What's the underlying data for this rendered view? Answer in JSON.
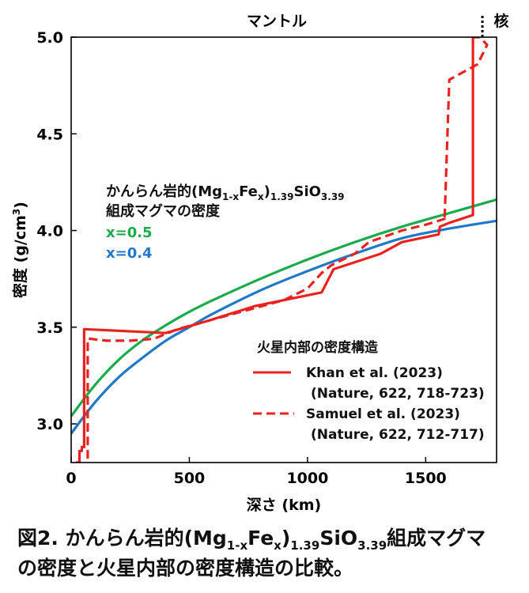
{
  "chart_data": {
    "type": "line",
    "xlabel": "深さ (km)",
    "ylabel_main": "密度 (g/cm",
    "ylabel_sup": "3",
    "ylabel_close": ")",
    "xlim": [
      0,
      1800
    ],
    "ylim": [
      2.8,
      5.0
    ],
    "xticks": [
      0,
      500,
      1000,
      1500
    ],
    "xtick_labels": [
      "0",
      "500",
      "1000",
      "1500"
    ],
    "yticks": [
      3.0,
      3.5,
      4.0,
      4.5,
      5.0
    ],
    "ytick_labels": [
      "3.0",
      "3.5",
      "4.0",
      "4.5",
      "5.0"
    ],
    "regions": {
      "mantle": "マントル",
      "core": "核",
      "boundary_depth": 1740
    },
    "annotation": {
      "line1": "かんらん岩的(Mg",
      "line1_sub1": "1-x",
      "line1_mid": "Fe",
      "line1_sub2": "x",
      "line1_mid2": ")",
      "line1_sub3": "1.39",
      "line1_mid3": "SiO",
      "line1_sub4": "3.39",
      "line2": "組成マグマの密度",
      "x05": "x=0.5",
      "x04": "x=0.4"
    },
    "legend": {
      "title": "火星内部の密度構造",
      "items": [
        {
          "label": "Khan et al. (2023)",
          "ref": "(Nature, 622, 718-723)",
          "style": "solid"
        },
        {
          "label": "Samuel et al. (2023)",
          "ref": "(Nature, 622, 712-717)",
          "style": "dashed"
        }
      ]
    },
    "series": [
      {
        "name": "x=0.5",
        "color": "#1aab4b",
        "x": [
          0,
          100,
          200,
          300,
          400,
          500,
          600,
          800,
          1000,
          1200,
          1400,
          1600,
          1800
        ],
        "y": [
          3.04,
          3.2,
          3.33,
          3.43,
          3.51,
          3.58,
          3.64,
          3.75,
          3.85,
          3.94,
          4.02,
          4.09,
          4.16
        ]
      },
      {
        "name": "x=0.4",
        "color": "#1f78c8",
        "x": [
          0,
          100,
          200,
          300,
          400,
          500,
          600,
          800,
          1000,
          1200,
          1400,
          1600,
          1800
        ],
        "y": [
          2.95,
          3.11,
          3.24,
          3.34,
          3.43,
          3.5,
          3.57,
          3.69,
          3.79,
          3.88,
          3.96,
          4.01,
          4.05
        ]
      },
      {
        "name": "Khan et al. (2023)",
        "color": "#e8231f",
        "dash": false,
        "x": [
          20,
          35,
          35,
          45,
          45,
          55,
          55,
          400,
          570,
          780,
          1060,
          1110,
          1310,
          1400,
          1555,
          1560,
          1600,
          1700,
          1700,
          1700
        ],
        "y": [
          2.8,
          2.8,
          2.86,
          2.86,
          2.88,
          2.88,
          3.49,
          3.47,
          3.53,
          3.61,
          3.68,
          3.8,
          3.88,
          3.94,
          3.98,
          4.02,
          4.04,
          4.08,
          4.08,
          5.0
        ]
      },
      {
        "name": "Samuel et al. (2023)",
        "color": "#e8231f",
        "dash": true,
        "x": [
          70,
          70,
          80,
          150,
          250,
          350,
          450,
          600,
          900,
          1000,
          1060,
          1100,
          1200,
          1260,
          1400,
          1500,
          1580,
          1580,
          1600,
          1720,
          1760,
          1730,
          1700
        ],
        "y": [
          2.82,
          3.44,
          3.44,
          3.43,
          3.43,
          3.44,
          3.49,
          3.54,
          3.64,
          3.7,
          3.78,
          3.82,
          3.88,
          3.94,
          4.0,
          4.03,
          4.06,
          4.05,
          4.78,
          4.86,
          4.96,
          5.0,
          5.0
        ]
      }
    ]
  },
  "caption": {
    "l1a": "図2. かんらん岩的(Mg",
    "l1s1": "1-x",
    "l1b": "Fe",
    "l1s2": "x",
    "l1c": ")",
    "l1s3": "1.39",
    "l1d": "SiO",
    "l1s4": "3.39",
    "l1e": "組成マグマ",
    "l2": "の密度と火星内部の密度構造の比較。"
  }
}
